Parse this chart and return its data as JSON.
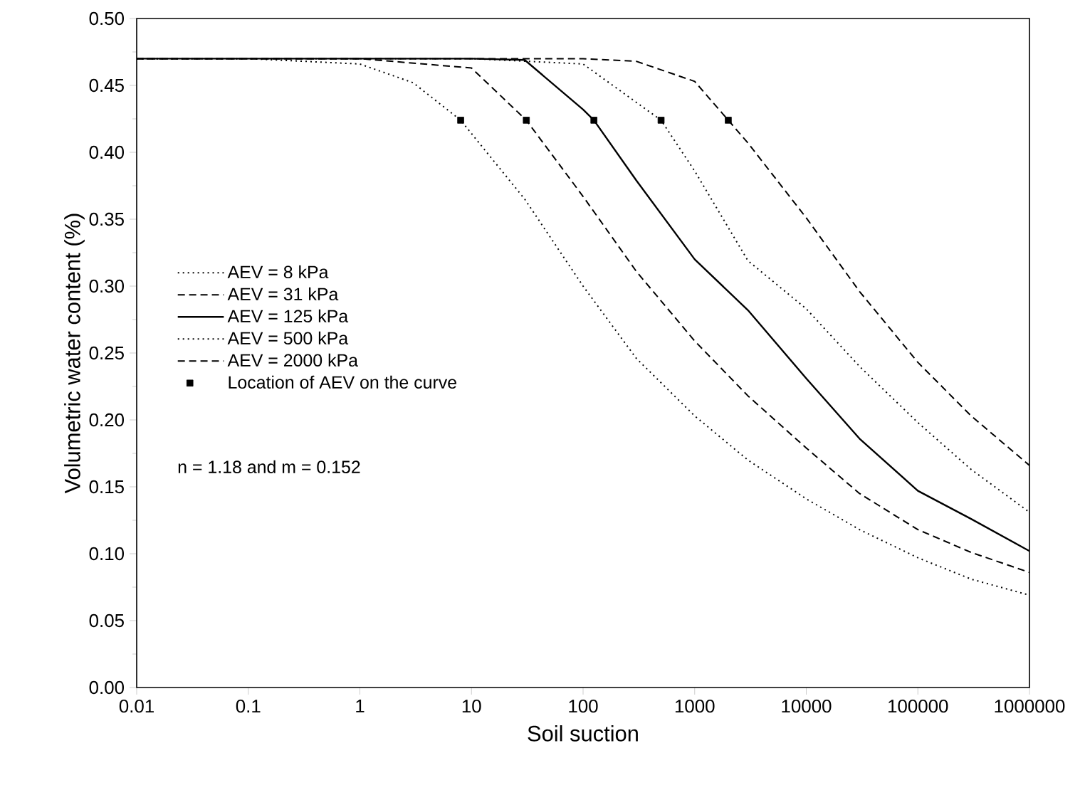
{
  "chart_data": {
    "type": "line",
    "xlabel": "Soil suction",
    "ylabel": "Volumetric water content (%)",
    "log": "x",
    "grid": false,
    "legend": "left",
    "xlim": [
      0.01,
      1000000
    ],
    "ylim": [
      0,
      0.5
    ],
    "xticks": [
      0.01,
      0.1,
      1,
      10,
      100,
      1000,
      10000,
      100000,
      1000000
    ],
    "yticks": [
      {
        "value": 0,
        "label": "0.00"
      },
      {
        "value": 0.05,
        "label": "0.05"
      },
      {
        "value": 0.1,
        "label": "0.10"
      },
      {
        "value": 0.15,
        "label": "0.15"
      },
      {
        "value": 0.2,
        "label": "0.20"
      },
      {
        "value": 0.25,
        "label": "0.25"
      },
      {
        "value": 0.3,
        "label": "0.30"
      },
      {
        "value": 0.35,
        "label": "0.35"
      },
      {
        "value": 0.4,
        "label": "0.40"
      },
      {
        "value": 0.45,
        "label": "0.45"
      },
      {
        "value": 0.5,
        "label": "0.50"
      }
    ],
    "series": [
      {
        "name": "AEV = 8 kPa",
        "color": "#000000",
        "line_style": "dotted",
        "x": [
          0.01,
          0.1,
          1,
          3,
          8,
          30,
          100,
          300,
          1000,
          3000,
          10000,
          30000,
          100000,
          300000,
          1000000
        ],
        "values": [
          0.47,
          0.47,
          0.466,
          0.452,
          0.424,
          0.365,
          0.3,
          0.246,
          0.203,
          0.17,
          0.141,
          0.118,
          0.097,
          0.081,
          0.069
        ]
      },
      {
        "name": "AEV = 31 kPa",
        "color": "#000000",
        "line_style": "dashed",
        "x": [
          0.01,
          0.1,
          1,
          10,
          31,
          100,
          300,
          1000,
          3000,
          10000,
          30000,
          100000,
          300000,
          1000000
        ],
        "values": [
          0.47,
          0.47,
          0.47,
          0.463,
          0.424,
          0.367,
          0.311,
          0.259,
          0.218,
          0.179,
          0.145,
          0.118,
          0.101,
          0.086
        ]
      },
      {
        "name": "AEV = 125 kPa",
        "color": "#000000",
        "line_style": "solid",
        "x": [
          0.01,
          0.1,
          1,
          10,
          30,
          100,
          125,
          300,
          1000,
          3000,
          10000,
          30000,
          100000,
          300000,
          1000000
        ],
        "values": [
          0.47,
          0.47,
          0.47,
          0.47,
          0.469,
          0.432,
          0.424,
          0.379,
          0.32,
          0.282,
          0.231,
          0.186,
          0.147,
          0.126,
          0.102
        ]
      },
      {
        "name": "AEV = 500 kPa",
        "color": "#000000",
        "line_style": "dotted",
        "x": [
          0.01,
          0.1,
          1,
          10,
          100,
          500,
          1000,
          3000,
          10000,
          30000,
          100000,
          300000,
          1000000
        ],
        "values": [
          0.47,
          0.47,
          0.47,
          0.47,
          0.466,
          0.424,
          0.386,
          0.319,
          0.283,
          0.24,
          0.198,
          0.163,
          0.131
        ]
      },
      {
        "name": "AEV = 2000 kPa",
        "color": "#000000",
        "line_style": "dashed",
        "x": [
          0.01,
          0.1,
          1,
          10,
          100,
          300,
          1000,
          2000,
          3000,
          10000,
          30000,
          100000,
          300000,
          1000000
        ],
        "values": [
          0.47,
          0.47,
          0.47,
          0.47,
          0.47,
          0.468,
          0.453,
          0.424,
          0.407,
          0.351,
          0.296,
          0.243,
          0.203,
          0.166
        ]
      },
      {
        "name": "Location of AEV on the curve",
        "type": "scatter",
        "marker": "square",
        "color": "#000000",
        "x": [
          8,
          31,
          125,
          500,
          2000
        ],
        "values": [
          0.424,
          0.424,
          0.424,
          0.424,
          0.424
        ]
      }
    ],
    "annotations": [
      "n = 1.18 and m = 0.152"
    ]
  }
}
